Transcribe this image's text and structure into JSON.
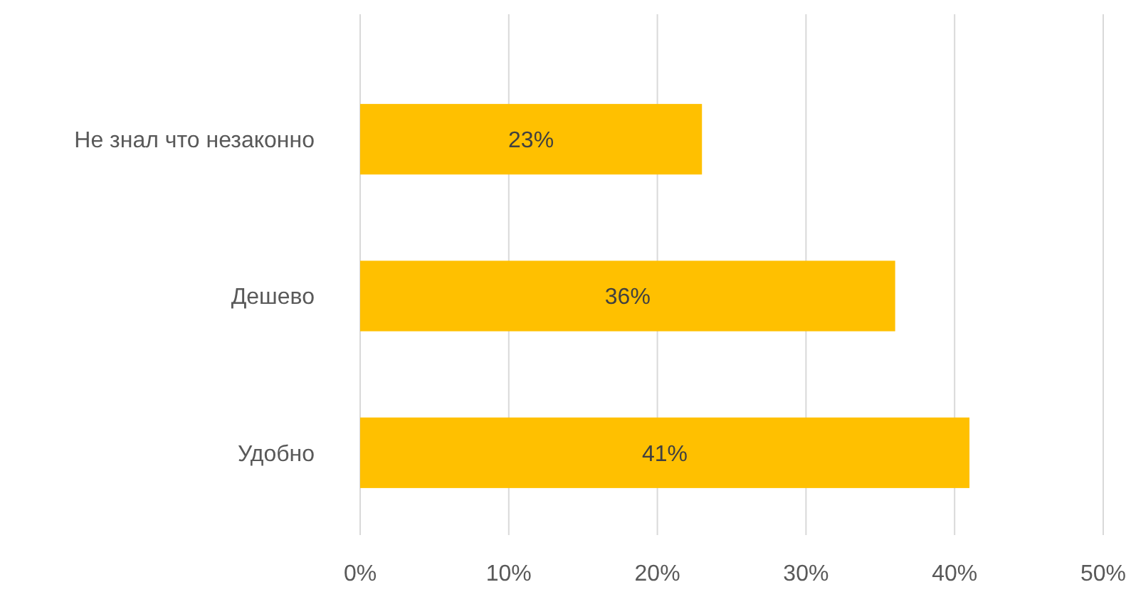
{
  "chart_data": {
    "type": "bar",
    "orientation": "horizontal",
    "categories": [
      "Не знал что незаконно",
      "Дешево",
      "Удобно"
    ],
    "values": [
      23,
      36,
      41
    ],
    "value_labels": [
      "23%",
      "36%",
      "41%"
    ],
    "color": "#ffc000",
    "xlim": [
      0,
      50
    ],
    "xticks": [
      {
        "value": 0,
        "label": "0%"
      },
      {
        "value": 10,
        "label": "10%"
      },
      {
        "value": 20,
        "label": "20%"
      },
      {
        "value": 30,
        "label": "30%"
      },
      {
        "value": 40,
        "label": "40%"
      },
      {
        "value": 50,
        "label": "50%"
      }
    ],
    "grid": "x"
  }
}
